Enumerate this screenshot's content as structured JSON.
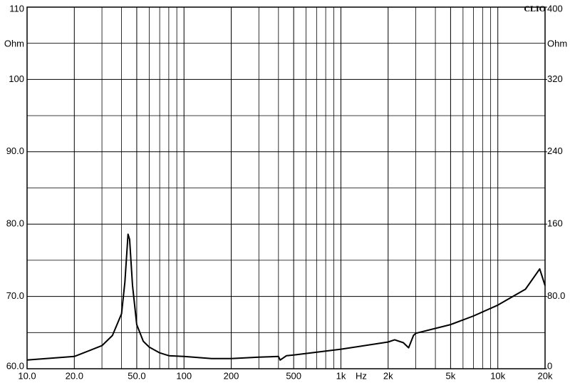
{
  "chart_data": {
    "type": "line",
    "brand": "CLIO",
    "y_unit": "Ohm",
    "y2_unit": "Ohm",
    "x_unit": "Hz",
    "xscale": "log",
    "grid": true,
    "xlim": [
      10,
      20000
    ],
    "ylim": [
      60,
      110
    ],
    "y2lim": [
      0,
      400
    ],
    "xticks": [
      {
        "value": 10,
        "label": "10.0"
      },
      {
        "value": 20,
        "label": "20.0"
      },
      {
        "value": 50,
        "label": "50.0"
      },
      100,
      200,
      500,
      {
        "value": 1000,
        "label": "1k"
      },
      {
        "value": 2000,
        "label": "2k"
      },
      {
        "value": 5000,
        "label": "5k"
      },
      {
        "value": 10000,
        "label": "10k"
      },
      {
        "value": 20000,
        "label": "20k"
      }
    ],
    "minor_xticks": [
      30,
      40,
      60,
      70,
      80,
      90,
      300,
      400,
      600,
      700,
      800,
      900,
      3000,
      4000,
      6000,
      7000,
      8000,
      9000
    ],
    "yticks": [
      {
        "value": 60,
        "label": "60.0"
      },
      {
        "value": 70,
        "label": "70.0"
      },
      {
        "value": 80,
        "label": "80.0"
      },
      {
        "value": 90,
        "label": "90.0"
      },
      100,
      110
    ],
    "minor_yticks": [
      65,
      75,
      85,
      95,
      105
    ],
    "y2ticks": [
      0,
      {
        "value": 80,
        "label": "80.0"
      },
      160,
      240,
      320,
      400
    ],
    "series": [
      {
        "color": "#000000",
        "x": [
          10,
          20,
          30,
          35,
          40,
          42,
          44,
          45,
          47,
          50,
          55,
          60,
          70,
          80,
          100,
          150,
          200,
          300,
          400,
          410,
          450,
          500,
          1000,
          2000,
          2200,
          2500,
          2700,
          2900,
          3000,
          5000,
          7000,
          10000,
          15000,
          18500,
          20000
        ],
        "values": [
          61.2,
          61.7,
          63.2,
          64.6,
          67.6,
          72,
          78.6,
          77.9,
          71.5,
          66.1,
          63.8,
          63,
          62.2,
          61.8,
          61.7,
          61.4,
          61.4,
          61.6,
          61.7,
          61.2,
          61.8,
          61.9,
          62.7,
          63.7,
          64.0,
          63.6,
          62.9,
          64.6,
          64.9,
          66.1,
          67.3,
          68.8,
          71.0,
          73.8,
          71.5
        ]
      }
    ]
  }
}
